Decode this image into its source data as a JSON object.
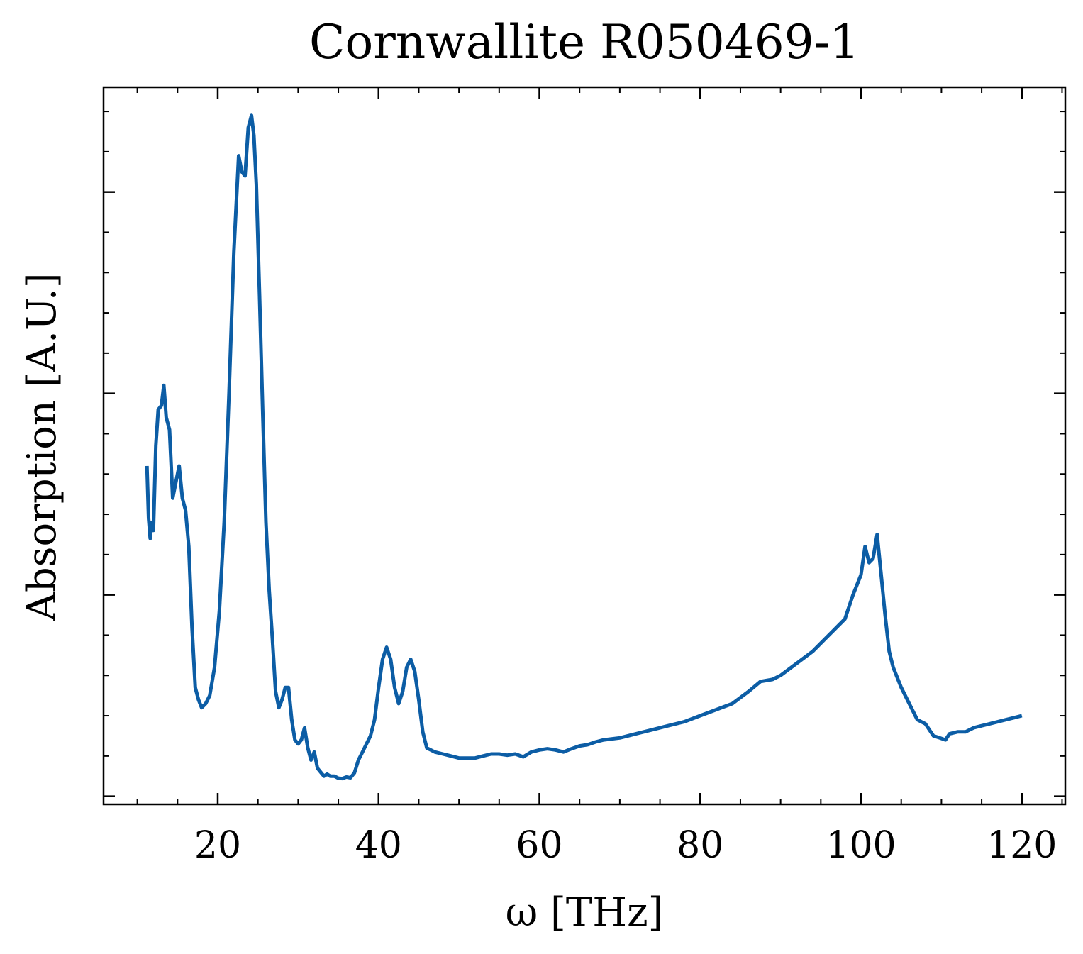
{
  "chart_data": {
    "type": "line",
    "title": "Cornwallite R050469-1",
    "xlabel": "ω [THz]",
    "ylabel": "Absorption [A.U.]",
    "xlim": [
      5.8,
      125.4
    ],
    "ylim": [
      -0.02,
      1.76
    ],
    "xticks": [
      20,
      40,
      60,
      80,
      100,
      120
    ],
    "xtick_labels": [
      "20",
      "40",
      "60",
      "80",
      "100",
      "120"
    ],
    "yticks": [
      0.0,
      0.5,
      1.0,
      1.5
    ],
    "ytick_labels": [
      "",
      "",
      "",
      ""
    ],
    "grid": false,
    "legend": "none",
    "series": [
      {
        "color": "#0c5da5",
        "x": [
          11.2,
          11.4,
          11.6,
          11.8,
          12.0,
          12.3,
          12.6,
          13.0,
          13.3,
          13.6,
          14.0,
          14.4,
          14.8,
          15.2,
          15.6,
          16.0,
          16.4,
          16.8,
          17.2,
          17.6,
          18.0,
          18.5,
          19.0,
          19.6,
          20.2,
          20.8,
          21.4,
          22.0,
          22.6,
          23.0,
          23.4,
          23.8,
          24.2,
          24.5,
          24.8,
          25.2,
          25.6,
          26.0,
          26.4,
          26.8,
          27.2,
          27.6,
          28.0,
          28.4,
          28.8,
          29.2,
          29.6,
          30.0,
          30.4,
          30.8,
          31.2,
          31.6,
          32.0,
          32.4,
          32.8,
          33.2,
          33.6,
          34.0,
          34.5,
          35.0,
          35.5,
          36.0,
          36.5,
          37.0,
          37.5,
          38.0,
          38.5,
          39.0,
          39.5,
          40.0,
          40.5,
          41.0,
          41.5,
          42.0,
          42.5,
          43.0,
          43.5,
          44.0,
          44.5,
          45.0,
          45.5,
          46.0,
          46.5,
          47.0,
          48.0,
          49.0,
          50.0,
          51.0,
          52.0,
          53.0,
          54.0,
          55.0,
          56.0,
          57.0,
          58.0,
          59.0,
          60.0,
          61.0,
          62.0,
          63.0,
          64.0,
          65.0,
          66.0,
          67.0,
          68.0,
          70.0,
          72.0,
          74.0,
          76.0,
          78.0,
          80.0,
          82.0,
          84.0,
          86.0,
          87.5,
          89.0,
          90.0,
          92.0,
          94.0,
          96.0,
          98.0,
          99.0,
          100.0,
          100.5,
          101.0,
          101.5,
          102.0,
          102.5,
          103.0,
          103.5,
          104.0,
          105.0,
          106.0,
          107.0,
          108.0,
          109.0,
          109.8,
          110.5,
          111.0,
          112.0,
          113.0,
          114.0,
          115.0,
          116.0,
          117.0,
          118.0,
          119.0,
          120.0
        ],
        "y": [
          0.82,
          0.69,
          0.64,
          0.68,
          0.66,
          0.87,
          0.96,
          0.97,
          1.02,
          0.94,
          0.91,
          0.74,
          0.78,
          0.82,
          0.74,
          0.71,
          0.62,
          0.42,
          0.27,
          0.24,
          0.22,
          0.23,
          0.25,
          0.32,
          0.46,
          0.68,
          1.0,
          1.35,
          1.59,
          1.55,
          1.54,
          1.66,
          1.69,
          1.64,
          1.52,
          1.24,
          0.95,
          0.68,
          0.51,
          0.39,
          0.26,
          0.22,
          0.24,
          0.27,
          0.27,
          0.19,
          0.14,
          0.13,
          0.14,
          0.17,
          0.12,
          0.09,
          0.11,
          0.07,
          0.06,
          0.05,
          0.055,
          0.05,
          0.05,
          0.045,
          0.044,
          0.048,
          0.046,
          0.058,
          0.09,
          0.11,
          0.13,
          0.15,
          0.19,
          0.27,
          0.34,
          0.37,
          0.34,
          0.27,
          0.23,
          0.26,
          0.32,
          0.34,
          0.31,
          0.24,
          0.16,
          0.12,
          0.115,
          0.11,
          0.105,
          0.1,
          0.095,
          0.095,
          0.095,
          0.1,
          0.105,
          0.105,
          0.102,
          0.105,
          0.098,
          0.11,
          0.115,
          0.118,
          0.115,
          0.11,
          0.118,
          0.125,
          0.128,
          0.135,
          0.14,
          0.145,
          0.155,
          0.165,
          0.175,
          0.185,
          0.2,
          0.215,
          0.23,
          0.26,
          0.285,
          0.29,
          0.3,
          0.33,
          0.36,
          0.4,
          0.44,
          0.5,
          0.55,
          0.62,
          0.58,
          0.59,
          0.65,
          0.55,
          0.45,
          0.36,
          0.32,
          0.27,
          0.23,
          0.19,
          0.18,
          0.15,
          0.145,
          0.14,
          0.155,
          0.16,
          0.16,
          0.17,
          0.175,
          0.18,
          0.185,
          0.19,
          0.195,
          0.2
        ]
      }
    ]
  }
}
